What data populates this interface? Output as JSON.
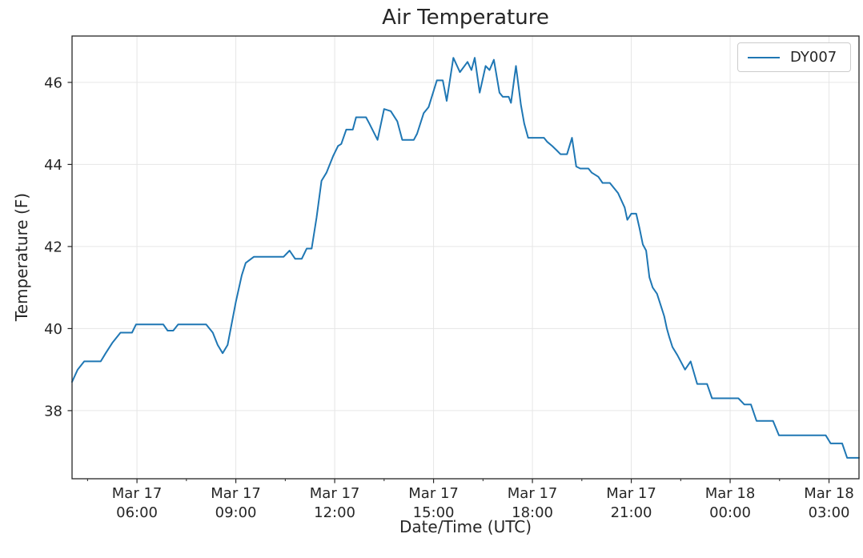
{
  "title": "Air Temperature",
  "axes": {
    "x_label": "Date/Time (UTC)",
    "y_label": "Temperature (F)"
  },
  "legend": {
    "series_label": "DY007",
    "line_color": "#1f77b4",
    "position": "upper right"
  },
  "chart_data": {
    "type": "line",
    "title": "Air Temperature",
    "xlabel": "Date/Time (UTC)",
    "ylabel": "Temperature (F)",
    "grid": true,
    "legend_position": "upper right",
    "x_unit": "hours since Mar 17 00:00 UTC",
    "xlim": [
      4.03,
      27.91
    ],
    "ylim": [
      36.34,
      47.13
    ],
    "y_ticks": [
      38,
      40,
      42,
      44,
      46
    ],
    "x_ticks": [
      {
        "value": 6,
        "line1": "Mar 17",
        "line2": "06:00"
      },
      {
        "value": 9,
        "line1": "Mar 17",
        "line2": "09:00"
      },
      {
        "value": 12,
        "line1": "Mar 17",
        "line2": "12:00"
      },
      {
        "value": 15,
        "line1": "Mar 17",
        "line2": "15:00"
      },
      {
        "value": 18,
        "line1": "Mar 17",
        "line2": "18:00"
      },
      {
        "value": 21,
        "line1": "Mar 17",
        "line2": "21:00"
      },
      {
        "value": 24,
        "line1": "Mar 18",
        "line2": "00:00"
      },
      {
        "value": 27,
        "line1": "Mar 18",
        "line2": "03:00"
      }
    ],
    "x_minor_ticks": [
      4.5,
      7.5,
      10.5,
      13.5,
      16.5,
      19.5,
      22.5,
      25.5
    ],
    "series": [
      {
        "name": "DY007",
        "color": "#1f77b4",
        "points": [
          [
            4.03,
            38.7
          ],
          [
            4.2,
            39.0
          ],
          [
            4.4,
            39.2
          ],
          [
            4.9,
            39.2
          ],
          [
            5.05,
            39.4
          ],
          [
            5.25,
            39.65
          ],
          [
            5.5,
            39.9
          ],
          [
            5.85,
            39.9
          ],
          [
            5.97,
            40.1
          ],
          [
            6.8,
            40.1
          ],
          [
            6.93,
            39.95
          ],
          [
            7.1,
            39.95
          ],
          [
            7.25,
            40.1
          ],
          [
            8.1,
            40.1
          ],
          [
            8.3,
            39.9
          ],
          [
            8.45,
            39.6
          ],
          [
            8.6,
            39.4
          ],
          [
            8.75,
            39.6
          ],
          [
            9.0,
            40.65
          ],
          [
            9.18,
            41.3
          ],
          [
            9.3,
            41.6
          ],
          [
            9.55,
            41.75
          ],
          [
            10.45,
            41.75
          ],
          [
            10.63,
            41.9
          ],
          [
            10.8,
            41.7
          ],
          [
            11.0,
            41.7
          ],
          [
            11.15,
            41.95
          ],
          [
            11.3,
            41.95
          ],
          [
            11.45,
            42.7
          ],
          [
            11.6,
            43.6
          ],
          [
            11.75,
            43.8
          ],
          [
            11.95,
            44.2
          ],
          [
            12.1,
            44.45
          ],
          [
            12.2,
            44.5
          ],
          [
            12.35,
            44.85
          ],
          [
            12.55,
            44.85
          ],
          [
            12.65,
            45.15
          ],
          [
            12.95,
            45.15
          ],
          [
            13.05,
            45.0
          ],
          [
            13.3,
            44.6
          ],
          [
            13.5,
            45.35
          ],
          [
            13.7,
            45.3
          ],
          [
            13.9,
            45.05
          ],
          [
            14.05,
            44.6
          ],
          [
            14.4,
            44.6
          ],
          [
            14.5,
            44.75
          ],
          [
            14.7,
            45.25
          ],
          [
            14.85,
            45.4
          ],
          [
            15.1,
            46.05
          ],
          [
            15.28,
            46.05
          ],
          [
            15.4,
            45.55
          ],
          [
            15.6,
            46.6
          ],
          [
            15.8,
            46.25
          ],
          [
            16.03,
            46.5
          ],
          [
            16.15,
            46.3
          ],
          [
            16.25,
            46.6
          ],
          [
            16.4,
            45.75
          ],
          [
            16.58,
            46.4
          ],
          [
            16.7,
            46.3
          ],
          [
            16.83,
            46.55
          ],
          [
            17.0,
            45.75
          ],
          [
            17.1,
            45.65
          ],
          [
            17.28,
            45.65
          ],
          [
            17.35,
            45.5
          ],
          [
            17.5,
            46.4
          ],
          [
            17.65,
            45.45
          ],
          [
            17.75,
            45.0
          ],
          [
            17.87,
            44.65
          ],
          [
            18.35,
            44.65
          ],
          [
            18.45,
            44.55
          ],
          [
            18.6,
            44.45
          ],
          [
            18.73,
            44.35
          ],
          [
            18.85,
            44.25
          ],
          [
            19.05,
            44.25
          ],
          [
            19.2,
            44.65
          ],
          [
            19.33,
            43.95
          ],
          [
            19.45,
            43.9
          ],
          [
            19.7,
            43.9
          ],
          [
            19.8,
            43.8
          ],
          [
            20.0,
            43.7
          ],
          [
            20.13,
            43.55
          ],
          [
            20.35,
            43.55
          ],
          [
            20.6,
            43.3
          ],
          [
            20.8,
            42.95
          ],
          [
            20.88,
            42.65
          ],
          [
            21.0,
            42.8
          ],
          [
            21.15,
            42.8
          ],
          [
            21.25,
            42.45
          ],
          [
            21.35,
            42.05
          ],
          [
            21.45,
            41.9
          ],
          [
            21.55,
            41.25
          ],
          [
            21.65,
            41.0
          ],
          [
            21.78,
            40.85
          ],
          [
            21.9,
            40.55
          ],
          [
            22.0,
            40.3
          ],
          [
            22.08,
            40.0
          ],
          [
            22.15,
            39.8
          ],
          [
            22.25,
            39.55
          ],
          [
            22.4,
            39.35
          ],
          [
            22.63,
            39.0
          ],
          [
            22.8,
            39.2
          ],
          [
            23.0,
            38.65
          ],
          [
            23.3,
            38.65
          ],
          [
            23.45,
            38.3
          ],
          [
            24.25,
            38.3
          ],
          [
            24.43,
            38.15
          ],
          [
            24.63,
            38.15
          ],
          [
            24.8,
            37.75
          ],
          [
            25.3,
            37.75
          ],
          [
            25.48,
            37.4
          ],
          [
            26.9,
            37.4
          ],
          [
            27.05,
            37.2
          ],
          [
            27.4,
            37.2
          ],
          [
            27.55,
            36.85
          ],
          [
            27.91,
            36.85
          ]
        ]
      }
    ]
  }
}
